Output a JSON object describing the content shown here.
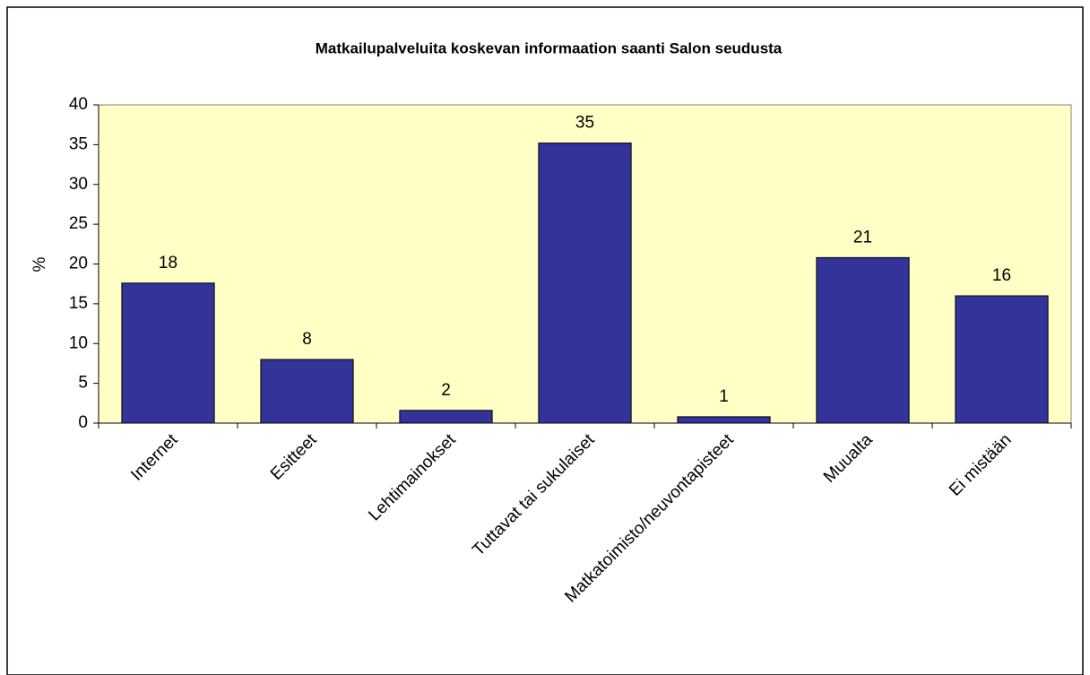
{
  "chart_data": {
    "type": "bar",
    "title": "Matkailupalveluita koskevan informaation saanti Salon seudusta",
    "y_label": "%",
    "categories": [
      "Internet",
      "Esitteet",
      "Lehtimainokset",
      "Tuttavat tai sukulaiset",
      "Matkatoimisto/neuvontapisteet",
      "Muualta",
      "Ei mistään"
    ],
    "values": [
      17.6,
      8,
      1.6,
      35.2,
      0.8,
      20.8,
      16
    ],
    "value_labels": [
      "18",
      "8",
      "2",
      "35",
      "1",
      "21",
      "16"
    ],
    "color": "#333399",
    "ylim": [
      0,
      40
    ],
    "yticks": [
      0,
      5,
      10,
      15,
      20,
      25,
      30,
      35,
      40
    ],
    "grid": false
  }
}
